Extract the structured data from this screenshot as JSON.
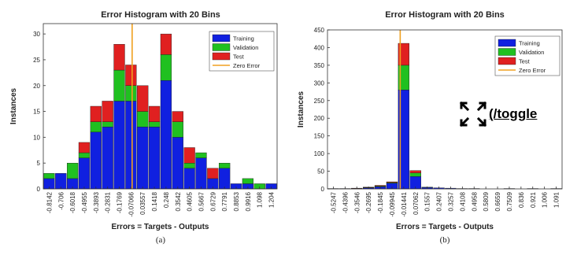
{
  "colors": {
    "training": "#1020e0",
    "validation": "#20c020",
    "test": "#e02020",
    "zero_error": "#f0a020",
    "axis": "#333333"
  },
  "legend_labels": [
    "Training",
    "Validation",
    "Test",
    "Zero Error"
  ],
  "toggle": {
    "label": "(/toggle",
    "icon": "fullscreen-icon"
  },
  "chart_data": [
    {
      "type": "bar",
      "stacked": true,
      "title": "Error Histogram with 20 Bins",
      "xlabel": "Errors = Targets - Outputs",
      "ylabel": "Instances",
      "caption": "(a)",
      "categories": [
        "-0.8142",
        "-0.706",
        "-0.6018",
        "-0.4955",
        "-0.3893",
        "-0.2831",
        "-0.1769",
        "-0.07066",
        "0.03557",
        "0.1418",
        "0.248",
        "0.3542",
        "0.4605",
        "0.5667",
        "0.6729",
        "0.7791",
        "0.8853",
        "0.9916",
        "1.098",
        "1.204"
      ],
      "series": [
        {
          "name": "Training",
          "values": [
            2,
            3,
            2,
            6,
            11,
            12,
            17,
            17,
            12,
            12,
            21,
            10,
            4,
            6,
            2,
            4,
            1,
            1,
            0,
            1
          ]
        },
        {
          "name": "Validation",
          "values": [
            1,
            0,
            3,
            1,
            2,
            1,
            6,
            3,
            3,
            1,
            5,
            3,
            1,
            1,
            0,
            1,
            0,
            1,
            1,
            0
          ]
        },
        {
          "name": "Test",
          "values": [
            0,
            0,
            0,
            2,
            3,
            4,
            5,
            4,
            5,
            3,
            4,
            2,
            3,
            0,
            2,
            0,
            0,
            0,
            0,
            0
          ]
        }
      ],
      "ylim": [
        0,
        32
      ],
      "yticks": [
        0,
        5,
        10,
        15,
        20,
        25,
        30
      ],
      "zero_error_position": 7.6,
      "legend": "top-right"
    },
    {
      "type": "bar",
      "stacked": true,
      "title": "Error Histogram with 20 Bins",
      "xlabel": "Errors = Targets - Outputs",
      "ylabel": "Instances",
      "caption": "(b)",
      "categories": [
        "-0.5247",
        "-0.4396",
        "-0.3546",
        "-0.2695",
        "-0.1845",
        "-0.09945",
        "-0.01441",
        "0.07062",
        "0.1557",
        "0.2407",
        "0.3257",
        "0.4108",
        "0.4958",
        "0.5809",
        "0.6659",
        "0.7509",
        "0.836",
        "0.921",
        "1.006",
        "1.091"
      ],
      "series": [
        {
          "name": "Training",
          "values": [
            1,
            1,
            1,
            3,
            6,
            16,
            280,
            35,
            4,
            3,
            2,
            1,
            1,
            0,
            0,
            1,
            0,
            1,
            0,
            1
          ]
        },
        {
          "name": "Validation",
          "values": [
            0,
            0,
            0,
            1,
            2,
            2,
            70,
            10,
            1,
            0,
            0,
            0,
            0,
            0,
            0,
            0,
            0,
            0,
            0,
            0
          ]
        },
        {
          "name": "Test",
          "values": [
            0,
            0,
            1,
            1,
            2,
            2,
            62,
            7,
            0,
            0,
            0,
            0,
            0,
            0,
            0,
            0,
            0,
            0,
            0,
            0
          ]
        }
      ],
      "ylim": [
        0,
        450
      ],
      "yticks": [
        0,
        50,
        100,
        150,
        200,
        250,
        300,
        350,
        400,
        450
      ],
      "zero_error_position": 6.2,
      "legend": "top-right"
    }
  ]
}
